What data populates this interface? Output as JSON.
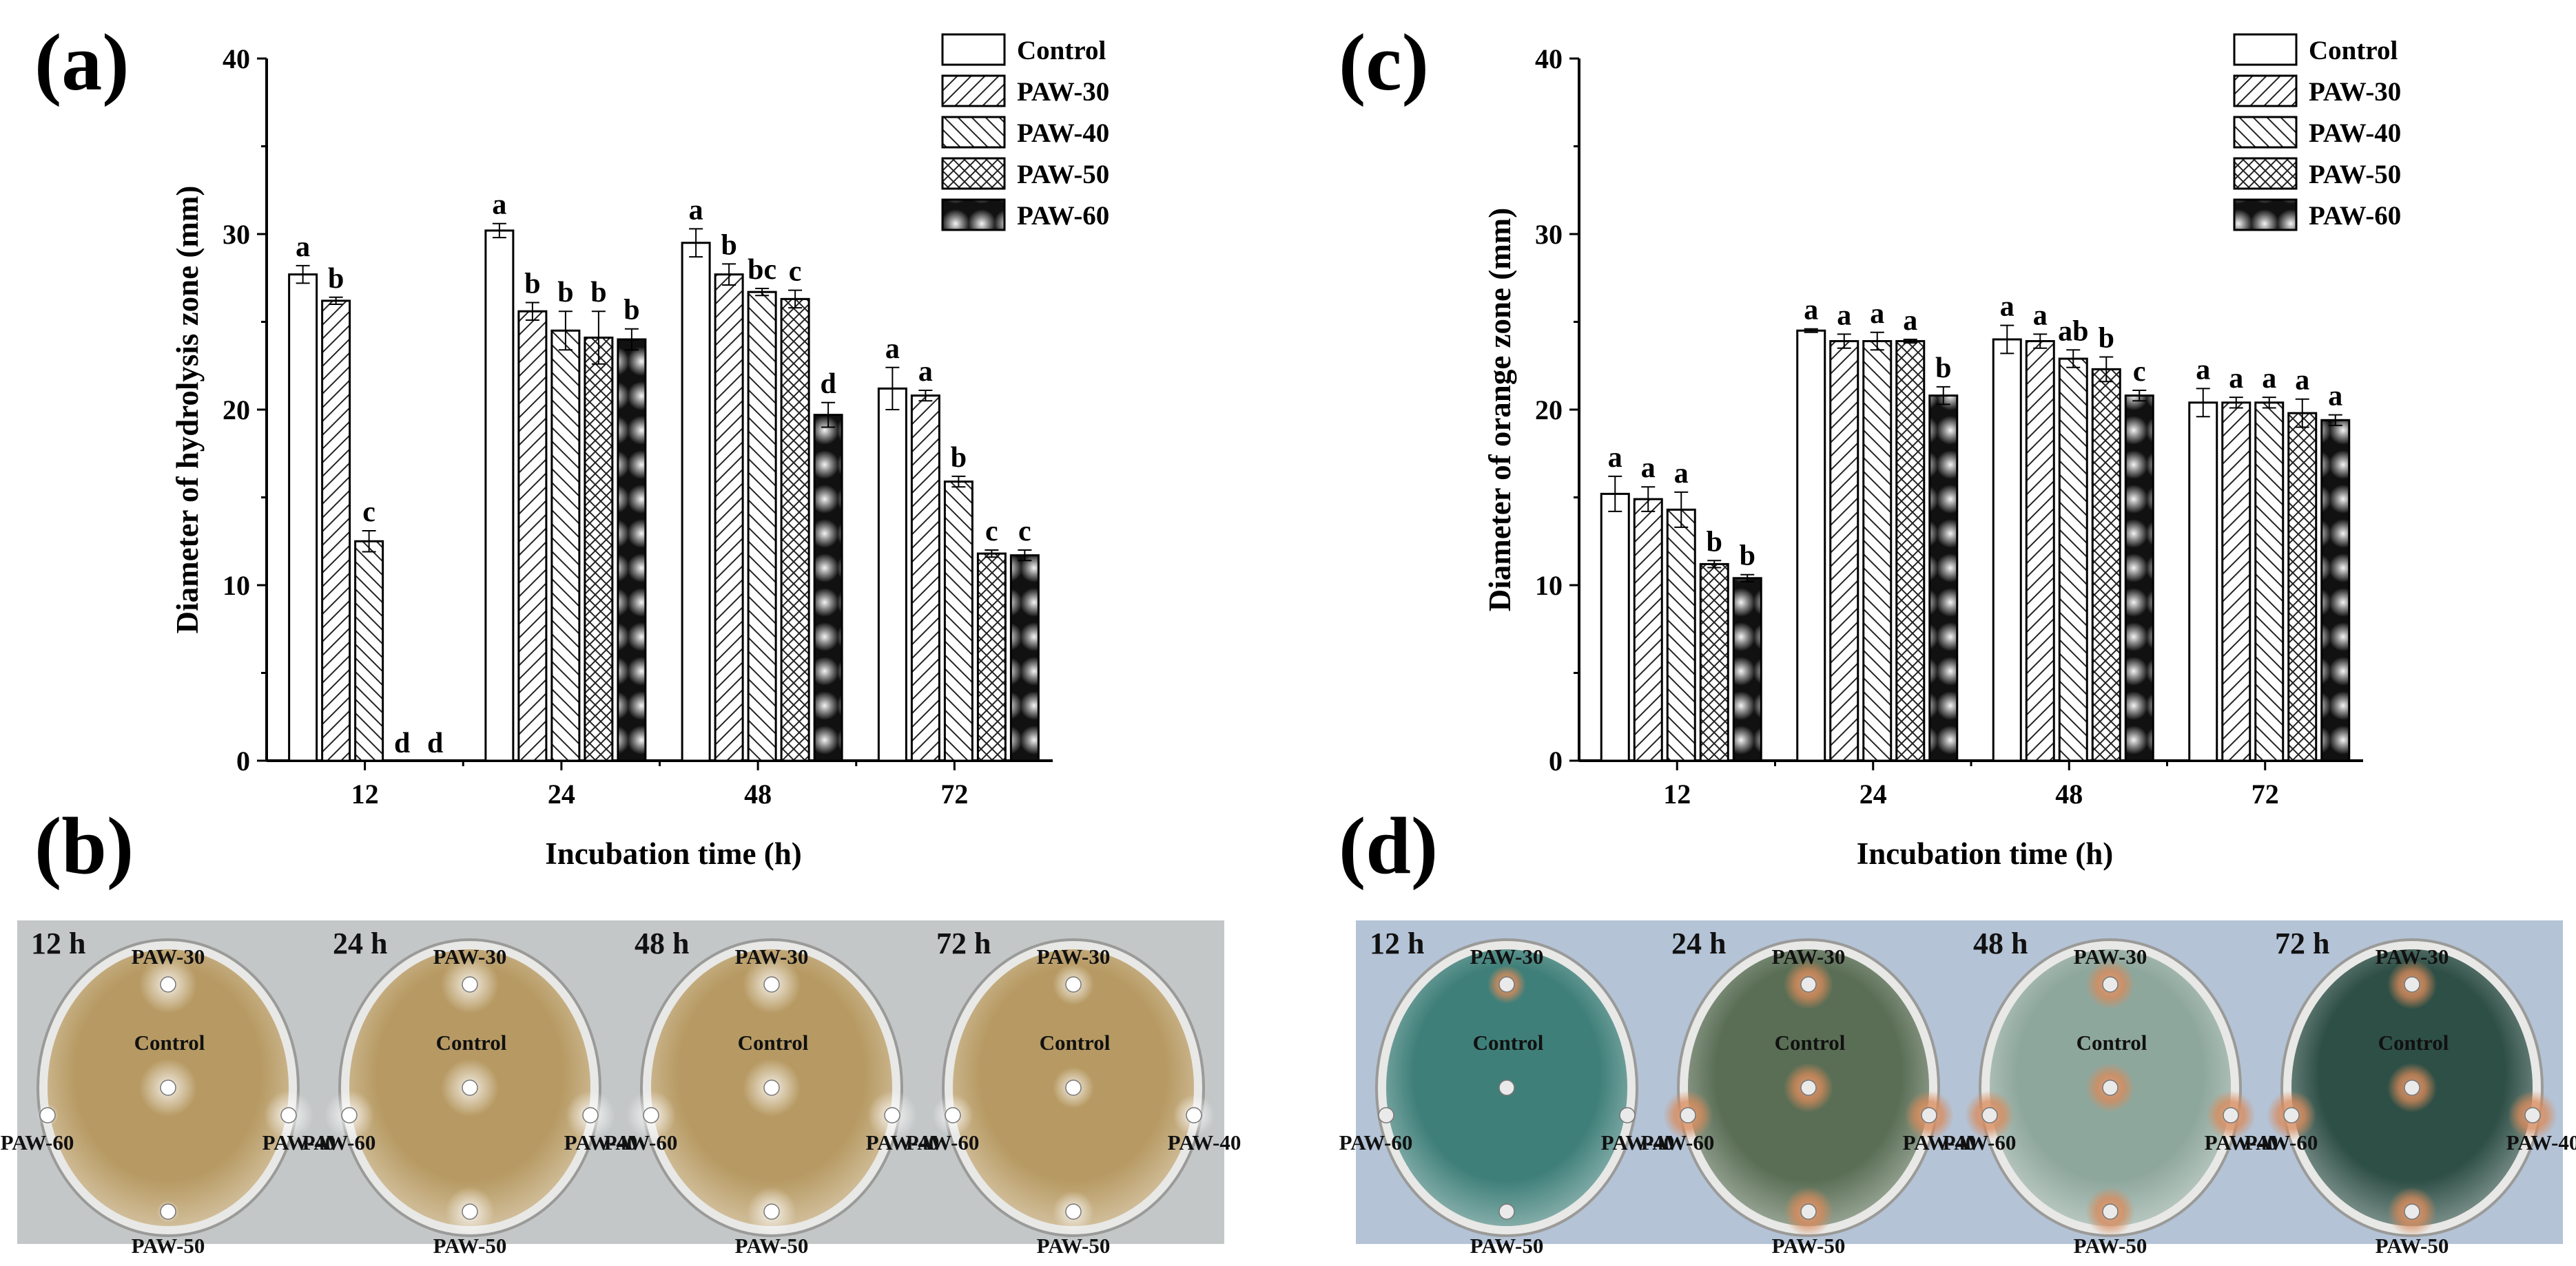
{
  "panels": {
    "a": "(a)",
    "b": "(b)",
    "c": "(c)",
    "d": "(d)"
  },
  "legend": [
    "Control",
    "PAW-30",
    "PAW-40",
    "PAW-50",
    "PAW-60"
  ],
  "chart_data": [
    {
      "type": "bar",
      "panel": "(a)",
      "title": "",
      "xlabel": "Incubation time (h)",
      "ylabel": "Diameter of hydrolysis zone  (mm)",
      "ylim": [
        0,
        40
      ],
      "yticks": [
        "0",
        "10",
        "20",
        "30",
        "40"
      ],
      "categories": [
        "12",
        "24",
        "48",
        "72"
      ],
      "series": [
        {
          "name": "Control",
          "values": [
            27.7,
            30.2,
            29.5,
            21.2
          ],
          "errors": [
            0.5,
            0.4,
            0.8,
            1.2
          ],
          "labels": [
            "a",
            "a",
            "a",
            "a"
          ]
        },
        {
          "name": "PAW-30",
          "values": [
            26.2,
            25.6,
            27.7,
            20.8
          ],
          "errors": [
            0.2,
            0.5,
            0.6,
            0.3
          ],
          "labels": [
            "b",
            "b",
            "b",
            "a"
          ]
        },
        {
          "name": "PAW-40",
          "values": [
            12.5,
            24.5,
            26.7,
            15.9
          ],
          "errors": [
            0.6,
            1.1,
            0.2,
            0.3
          ],
          "labels": [
            "c",
            "b",
            "bc",
            "b"
          ]
        },
        {
          "name": "PAW-50",
          "values": [
            0,
            24.1,
            26.3,
            11.8
          ],
          "errors": [
            0,
            1.5,
            0.5,
            0.2
          ],
          "labels": [
            "d",
            "b",
            "c",
            "c"
          ]
        },
        {
          "name": "PAW-60",
          "values": [
            0,
            24.0,
            19.7,
            11.7
          ],
          "errors": [
            0,
            0.6,
            0.7,
            0.3
          ],
          "labels": [
            "d",
            "b",
            "d",
            "c"
          ]
        }
      ]
    },
    {
      "type": "bar",
      "panel": "(c)",
      "title": "",
      "xlabel": "Incubation time (h)",
      "ylabel": "Diameter of orange zone (mm)",
      "ylim": [
        0,
        40
      ],
      "yticks": [
        "0",
        "10",
        "20",
        "30",
        "40"
      ],
      "categories": [
        "12",
        "24",
        "48",
        "72"
      ],
      "series": [
        {
          "name": "Control",
          "values": [
            15.2,
            24.5,
            24.0,
            20.4
          ],
          "errors": [
            1.0,
            0.1,
            0.8,
            0.8
          ],
          "labels": [
            "a",
            "a",
            "a",
            "a"
          ]
        },
        {
          "name": "PAW-30",
          "values": [
            14.9,
            23.9,
            23.9,
            20.4
          ],
          "errors": [
            0.7,
            0.4,
            0.4,
            0.3
          ],
          "labels": [
            "a",
            "a",
            "a",
            "a"
          ]
        },
        {
          "name": "PAW-40",
          "values": [
            14.3,
            23.9,
            22.9,
            20.4
          ],
          "errors": [
            1.0,
            0.5,
            0.5,
            0.3
          ],
          "labels": [
            "a",
            "a",
            "ab",
            "a"
          ]
        },
        {
          "name": "PAW-50",
          "values": [
            11.2,
            23.9,
            22.3,
            19.8
          ],
          "errors": [
            0.2,
            0.1,
            0.7,
            0.8
          ],
          "labels": [
            "b",
            "a",
            "b",
            "a"
          ]
        },
        {
          "name": "PAW-60",
          "values": [
            10.4,
            20.8,
            20.8,
            19.4
          ],
          "errors": [
            0.2,
            0.5,
            0.3,
            0.3
          ],
          "labels": [
            "b",
            "b",
            "c",
            "a"
          ]
        }
      ]
    }
  ],
  "photos": {
    "b": {
      "times": [
        "12 h",
        "24 h",
        "48 h",
        "72 h"
      ],
      "well_labels": [
        "PAW-30",
        "Control",
        "PAW-60",
        "PAW-40",
        "PAW-50"
      ],
      "plate_color": "#b79a63",
      "background": "#c4c7c8"
    },
    "d": {
      "times": [
        "12 h",
        "24 h",
        "48 h",
        "72 h"
      ],
      "well_labels": [
        "PAW-30",
        "Control",
        "PAW-60",
        "PAW-40",
        "PAW-50"
      ],
      "plate_colors": [
        "#3f7f79",
        "#5a6e55",
        "#8ea79d",
        "#2e4f46"
      ],
      "background": "#b4c3d6"
    }
  }
}
